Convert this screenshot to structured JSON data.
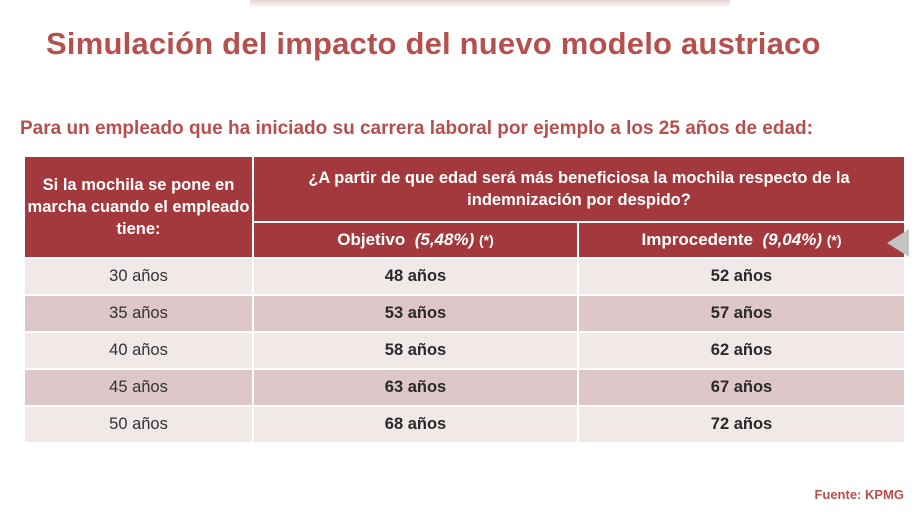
{
  "title": "Simulación del impacto del nuevo modelo austriaco",
  "subtitle": "Para un empleado que ha iniciado su carrera laboral por ejemplo a los 25 años de edad:",
  "table": {
    "left_header": "Si la mochila se pone en marcha cuando el empleado tiene:",
    "group_header": "¿A partir de que edad será más beneficiosa la mochila respecto de la indemnización por despido?",
    "col1": {
      "label": "Objetivo",
      "pct": "(5,48%)",
      "ref": "(*)"
    },
    "col2": {
      "label": "Improcedente",
      "pct": "(9,04%)",
      "ref": "(*)"
    },
    "rows": [
      {
        "age": "30 años",
        "objetivo": "48 años",
        "improcedente": "52 años"
      },
      {
        "age": "35 años",
        "objetivo": "53 años",
        "improcedente": "57 años"
      },
      {
        "age": "40 años",
        "objetivo": "58 años",
        "improcedente": "62 años"
      },
      {
        "age": "45 años",
        "objetivo": "63 años",
        "improcedente": "67 años"
      },
      {
        "age": "50 años",
        "objetivo": "68 años",
        "improcedente": "72 años"
      }
    ]
  },
  "source": "Fuente: KPMG",
  "colors": {
    "accent": "#b5504f",
    "header_bg": "#a3393d",
    "row_light": "#f1e8e8",
    "row_dark": "#ddc7c8"
  }
}
